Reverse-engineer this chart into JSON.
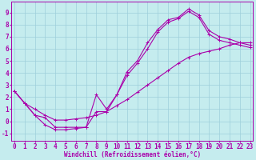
{
  "xlabel": "Windchill (Refroidissement éolien,°C)",
  "bg_color": "#c5ecee",
  "grid_color": "#9ecfda",
  "line_color": "#aa00aa",
  "x_ticks": [
    0,
    1,
    2,
    3,
    4,
    5,
    6,
    7,
    8,
    9,
    10,
    11,
    12,
    13,
    14,
    15,
    16,
    17,
    18,
    19,
    20,
    21,
    22,
    23
  ],
  "y_ticks": [
    -1,
    0,
    1,
    2,
    3,
    4,
    5,
    6,
    7,
    8,
    9
  ],
  "xlim": [
    -0.3,
    23.3
  ],
  "ylim": [
    -1.6,
    9.9
  ],
  "curve1_x": [
    0,
    1,
    2,
    3,
    4,
    5,
    6,
    7,
    8,
    9,
    10,
    11,
    12,
    13,
    14,
    15,
    16,
    17,
    18,
    19,
    20,
    21,
    22,
    23
  ],
  "curve1_y": [
    2.5,
    1.5,
    0.5,
    0.3,
    -0.5,
    -0.5,
    -0.5,
    -0.5,
    2.2,
    1.0,
    2.2,
    4.1,
    5.0,
    6.5,
    7.6,
    8.4,
    8.6,
    9.3,
    8.8,
    7.5,
    7.0,
    6.8,
    6.5,
    6.3
  ],
  "curve2_x": [
    0,
    1,
    2,
    3,
    4,
    5,
    6,
    7,
    8,
    9,
    10,
    11,
    12,
    13,
    14,
    15,
    16,
    17,
    18,
    19,
    20,
    21,
    22,
    23
  ],
  "curve2_y": [
    2.5,
    1.5,
    0.5,
    -0.3,
    -0.7,
    -0.7,
    -0.6,
    -0.5,
    0.8,
    0.8,
    2.2,
    3.8,
    4.8,
    6.0,
    7.4,
    8.2,
    8.5,
    9.1,
    8.6,
    7.2,
    6.7,
    6.5,
    6.3,
    6.1
  ],
  "curve3_x": [
    0,
    1,
    2,
    3,
    4,
    5,
    6,
    7,
    8,
    9,
    10,
    11,
    12,
    13,
    14,
    15,
    16,
    17,
    18,
    19,
    20,
    21,
    22,
    23
  ],
  "curve3_y": [
    2.5,
    1.5,
    1.0,
    0.5,
    0.1,
    0.1,
    0.2,
    0.3,
    0.5,
    0.8,
    1.3,
    1.8,
    2.4,
    3.0,
    3.6,
    4.2,
    4.8,
    5.3,
    5.6,
    5.8,
    6.0,
    6.3,
    6.5,
    6.5
  ],
  "tick_fontsize": 5.5,
  "xlabel_fontsize": 5.5,
  "lw": 0.8,
  "ms": 2.5,
  "mew": 0.7
}
